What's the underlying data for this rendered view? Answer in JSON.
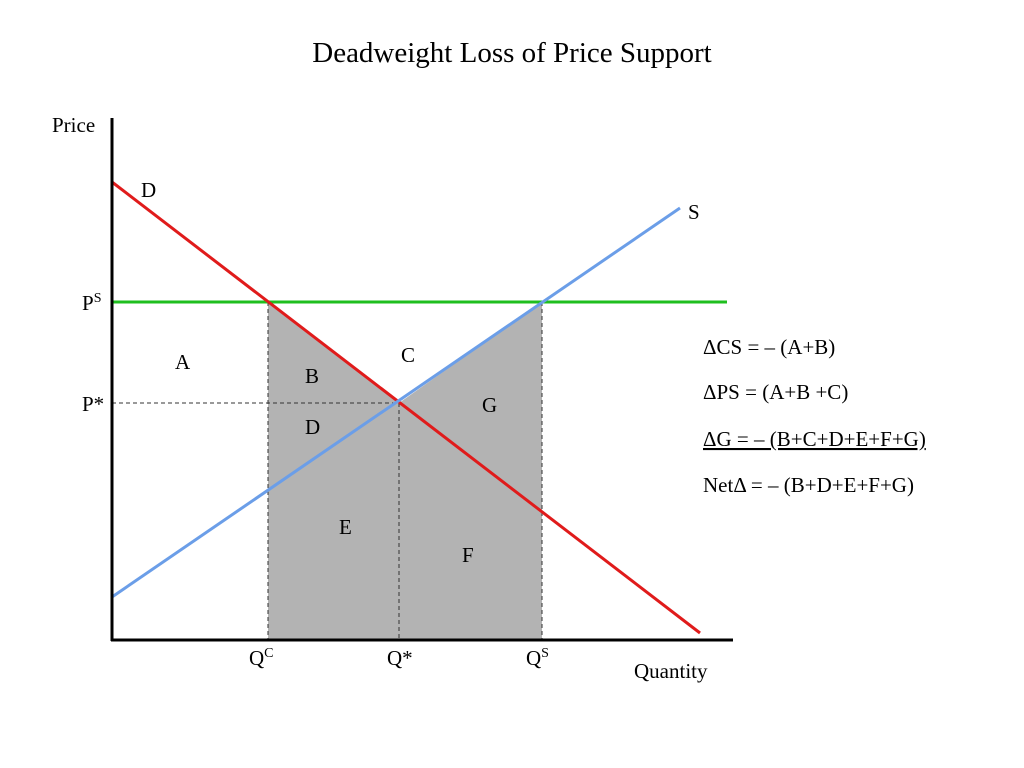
{
  "title": "Deadweight Loss of Price Support",
  "axes": {
    "y_label": "Price",
    "x_label": "Quantity"
  },
  "curves": {
    "demand": "D",
    "supply": "S"
  },
  "price_labels": {
    "support": {
      "base": "P",
      "sup": "S"
    },
    "equilibrium": "P*"
  },
  "quantity_labels": {
    "consumer": {
      "base": "Q",
      "sup": "C"
    },
    "equilibrium": "Q*",
    "supplied": {
      "base": "Q",
      "sup": "S"
    }
  },
  "regions": {
    "a": "A",
    "b": "B",
    "c": "C",
    "d": "D",
    "e": "E",
    "f": "F",
    "g": "G"
  },
  "equations": [
    "ΔCS = – (A+B)",
    "ΔPS = (A+B +C)",
    "ΔG = – (B+C+D+E+F+G)",
    "NetΔ = – (B+D+E+F+G)"
  ]
}
